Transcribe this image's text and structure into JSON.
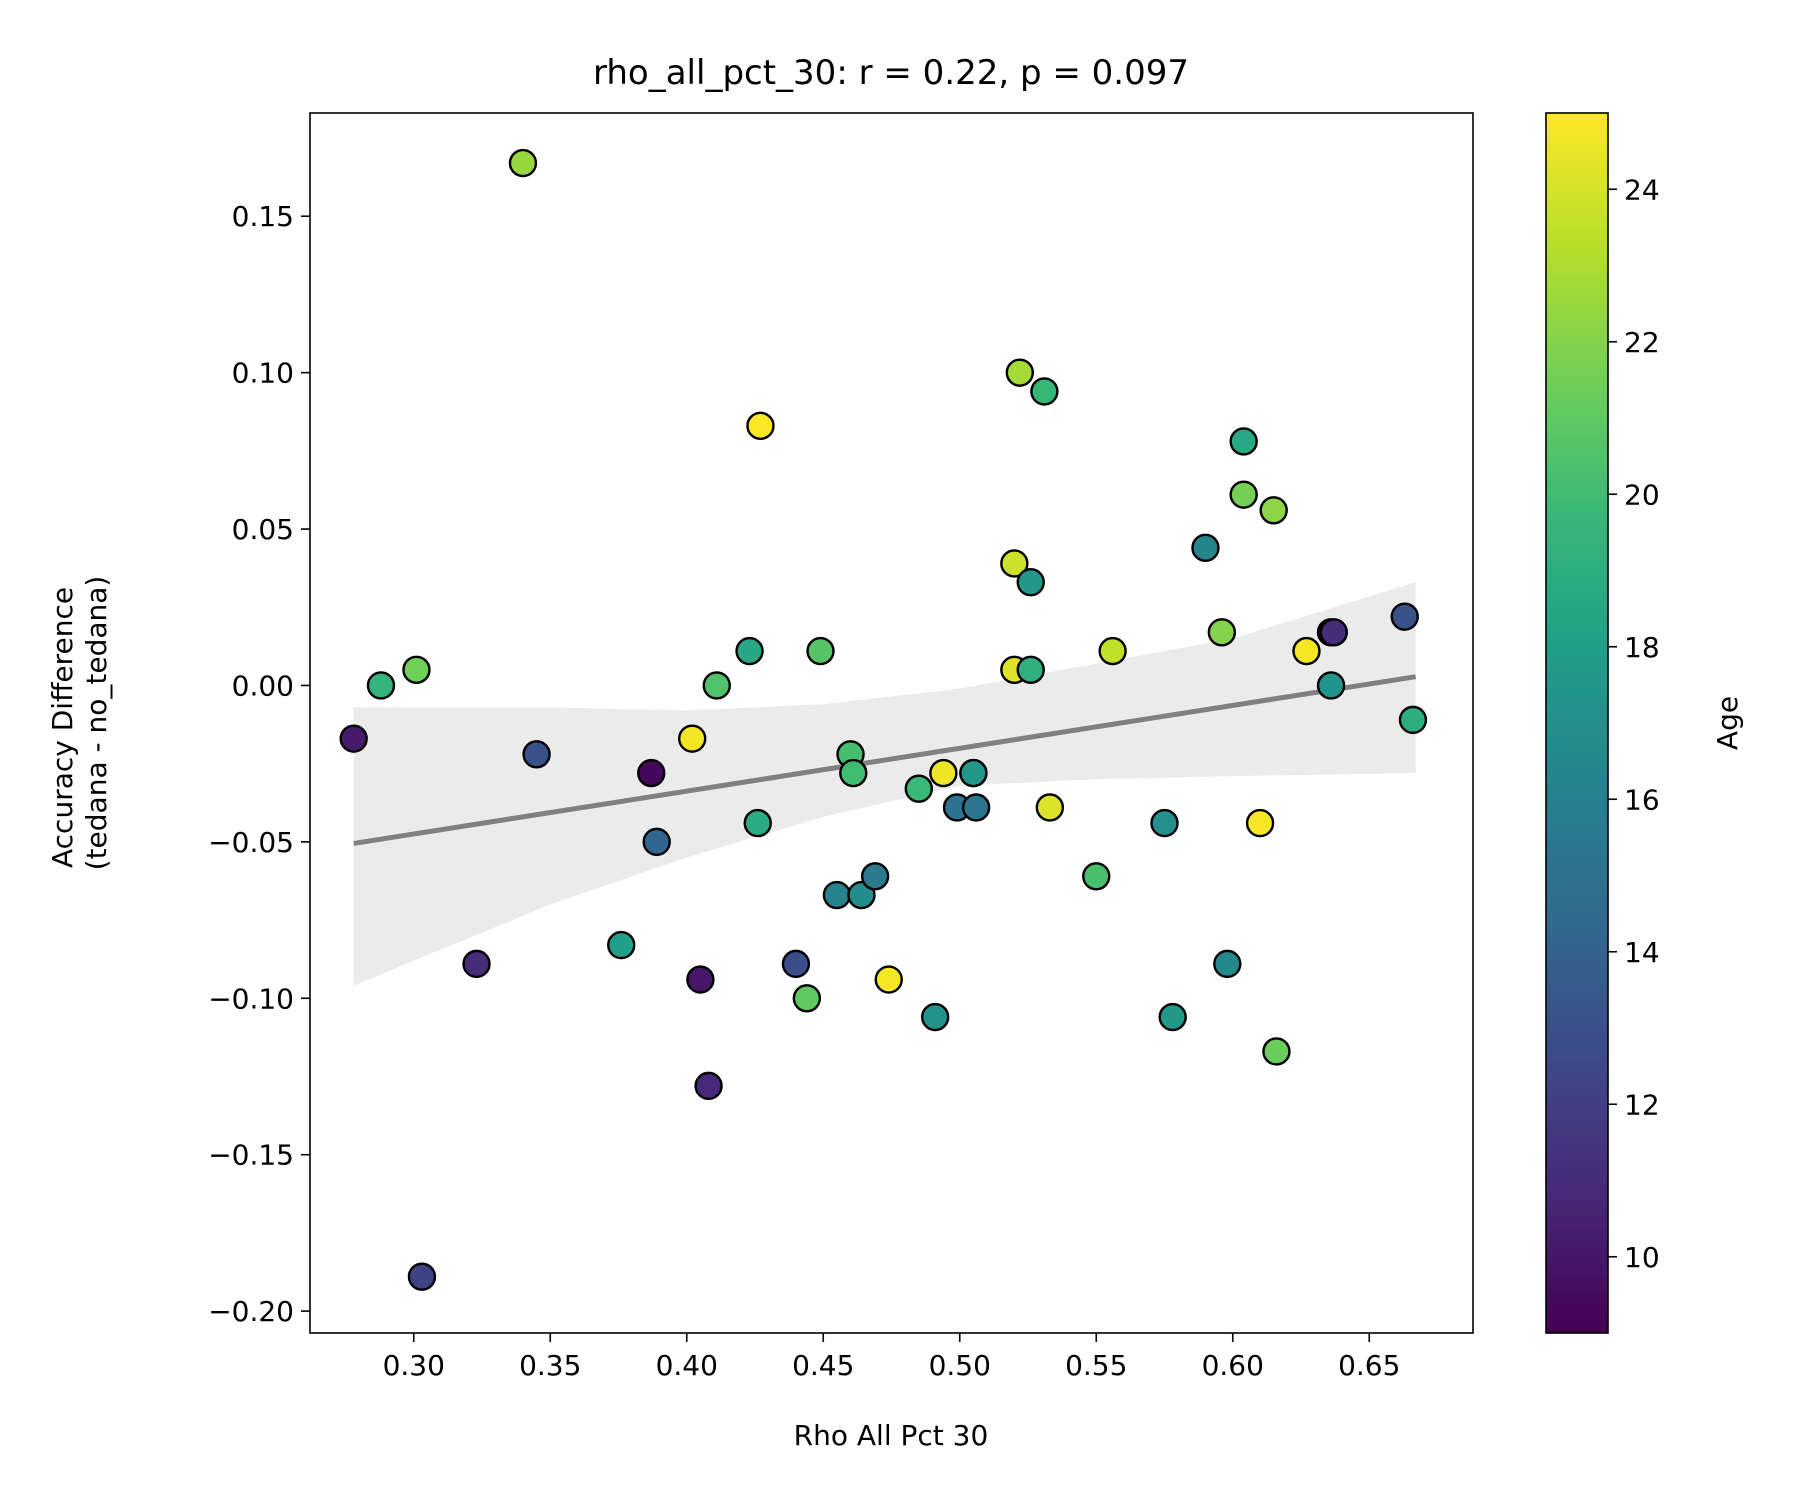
{
  "chart_data": {
    "type": "scatter",
    "title": "rho_all_pct_30: r = 0.22, p = 0.097",
    "xlabel": "Rho All Pct 30",
    "ylabel_lines": [
      "Accuracy Difference",
      "(tedana - no_tedana)"
    ],
    "xlim": [
      0.262,
      0.688
    ],
    "ylim": [
      -0.207,
      0.183
    ],
    "xticks": [
      0.3,
      0.35,
      0.4,
      0.45,
      0.5,
      0.55,
      0.6,
      0.65
    ],
    "xtick_labels": [
      "0.30",
      "0.35",
      "0.40",
      "0.45",
      "0.50",
      "0.55",
      "0.60",
      "0.65"
    ],
    "yticks": [
      0.15,
      0.1,
      0.05,
      0.0,
      -0.05,
      -0.1,
      -0.15,
      -0.2
    ],
    "ytick_labels": [
      "0.15",
      "0.10",
      "0.05",
      "0.00",
      "−0.05",
      "−0.10",
      "−0.15",
      "−0.20"
    ],
    "grid": false,
    "colorbar": {
      "label": "Age",
      "min": 9,
      "max": 25,
      "ticks": [
        10,
        12,
        14,
        16,
        18,
        20,
        22,
        24
      ],
      "tick_labels": [
        "10",
        "12",
        "14",
        "16",
        "18",
        "20",
        "22",
        "24"
      ],
      "colormap": "viridis",
      "stops": [
        "#440154",
        "#482878",
        "#3e4989",
        "#31688e",
        "#26828e",
        "#1f9e89",
        "#35b779",
        "#6ece58",
        "#b5de2b",
        "#fde725"
      ]
    },
    "regression": {
      "x": [
        0.278,
        0.667
      ],
      "y": [
        -0.0505,
        0.0028
      ],
      "line_color": "#808080",
      "ci_band": {
        "x": [
          0.278,
          0.3,
          0.35,
          0.4,
          0.45,
          0.5,
          0.55,
          0.6,
          0.667
        ],
        "lower": [
          -0.096,
          -0.088,
          -0.07,
          -0.055,
          -0.042,
          -0.032,
          -0.03,
          -0.029,
          -0.028
        ],
        "upper": [
          -0.007,
          -0.007,
          -0.007,
          -0.008,
          -0.006,
          -0.001,
          0.007,
          0.015,
          0.033
        ]
      },
      "band_color": "#ebebeb"
    },
    "points": [
      {
        "x": 0.278,
        "y": -0.017,
        "age": 10.2
      },
      {
        "x": 0.288,
        "y": 0.0,
        "age": 19.5
      },
      {
        "x": 0.301,
        "y": 0.005,
        "age": 21.5
      },
      {
        "x": 0.303,
        "y": -0.189,
        "age": 12.2
      },
      {
        "x": 0.323,
        "y": -0.089,
        "age": 11.0
      },
      {
        "x": 0.34,
        "y": 0.167,
        "age": 22.5
      },
      {
        "x": 0.345,
        "y": -0.022,
        "age": 13.0
      },
      {
        "x": 0.376,
        "y": -0.083,
        "age": 18.0
      },
      {
        "x": 0.387,
        "y": -0.028,
        "age": 9.3
      },
      {
        "x": 0.389,
        "y": -0.05,
        "age": 14.3
      },
      {
        "x": 0.402,
        "y": -0.017,
        "age": 24.7
      },
      {
        "x": 0.405,
        "y": -0.094,
        "age": 10.0
      },
      {
        "x": 0.408,
        "y": -0.128,
        "age": 10.8
      },
      {
        "x": 0.411,
        "y": 0.0,
        "age": 20.5
      },
      {
        "x": 0.423,
        "y": 0.011,
        "age": 18.5
      },
      {
        "x": 0.426,
        "y": -0.044,
        "age": 18.8
      },
      {
        "x": 0.427,
        "y": 0.083,
        "age": 25.0
      },
      {
        "x": 0.44,
        "y": -0.089,
        "age": 12.8
      },
      {
        "x": 0.444,
        "y": -0.1,
        "age": 21.0
      },
      {
        "x": 0.449,
        "y": 0.011,
        "age": 20.7
      },
      {
        "x": 0.455,
        "y": -0.067,
        "age": 16.2
      },
      {
        "x": 0.46,
        "y": -0.022,
        "age": 20.2
      },
      {
        "x": 0.461,
        "y": -0.028,
        "age": 20.0
      },
      {
        "x": 0.464,
        "y": -0.067,
        "age": 16.8
      },
      {
        "x": 0.469,
        "y": -0.061,
        "age": 15.5
      },
      {
        "x": 0.474,
        "y": -0.094,
        "age": 24.8
      },
      {
        "x": 0.485,
        "y": -0.033,
        "age": 19.8
      },
      {
        "x": 0.491,
        "y": -0.106,
        "age": 17.2
      },
      {
        "x": 0.494,
        "y": -0.028,
        "age": 24.6
      },
      {
        "x": 0.499,
        "y": -0.039,
        "age": 15.0
      },
      {
        "x": 0.505,
        "y": -0.028,
        "age": 16.0
      },
      {
        "x": 0.505,
        "y": -0.028,
        "age": 17.5
      },
      {
        "x": 0.506,
        "y": -0.039,
        "age": 15.2
      },
      {
        "x": 0.52,
        "y": 0.039,
        "age": 23.8
      },
      {
        "x": 0.52,
        "y": 0.005,
        "age": 24.2
      },
      {
        "x": 0.522,
        "y": 0.1,
        "age": 22.8
      },
      {
        "x": 0.526,
        "y": 0.033,
        "age": 17.5
      },
      {
        "x": 0.526,
        "y": 0.005,
        "age": 19.2
      },
      {
        "x": 0.531,
        "y": 0.094,
        "age": 19.7
      },
      {
        "x": 0.533,
        "y": -0.039,
        "age": 24.2
      },
      {
        "x": 0.55,
        "y": -0.061,
        "age": 20.3
      },
      {
        "x": 0.556,
        "y": 0.011,
        "age": 23.5
      },
      {
        "x": 0.575,
        "y": -0.044,
        "age": 17.0
      },
      {
        "x": 0.578,
        "y": -0.106,
        "age": 17.6
      },
      {
        "x": 0.59,
        "y": 0.044,
        "age": 16.3
      },
      {
        "x": 0.596,
        "y": 0.017,
        "age": 22.0
      },
      {
        "x": 0.598,
        "y": -0.089,
        "age": 16.5
      },
      {
        "x": 0.604,
        "y": 0.078,
        "age": 18.6
      },
      {
        "x": 0.604,
        "y": 0.061,
        "age": 21.6
      },
      {
        "x": 0.61,
        "y": -0.044,
        "age": 24.9
      },
      {
        "x": 0.615,
        "y": 0.056,
        "age": 22.2
      },
      {
        "x": 0.616,
        "y": -0.117,
        "age": 21.3
      },
      {
        "x": 0.627,
        "y": 0.011,
        "age": 24.8
      },
      {
        "x": 0.636,
        "y": 0.017,
        "age": 10.5
      },
      {
        "x": 0.637,
        "y": 0.017,
        "age": 11.0
      },
      {
        "x": 0.636,
        "y": 0.0,
        "age": 17.3
      },
      {
        "x": 0.663,
        "y": 0.022,
        "age": 13.0
      },
      {
        "x": 0.666,
        "y": -0.011,
        "age": 19.0
      }
    ]
  }
}
